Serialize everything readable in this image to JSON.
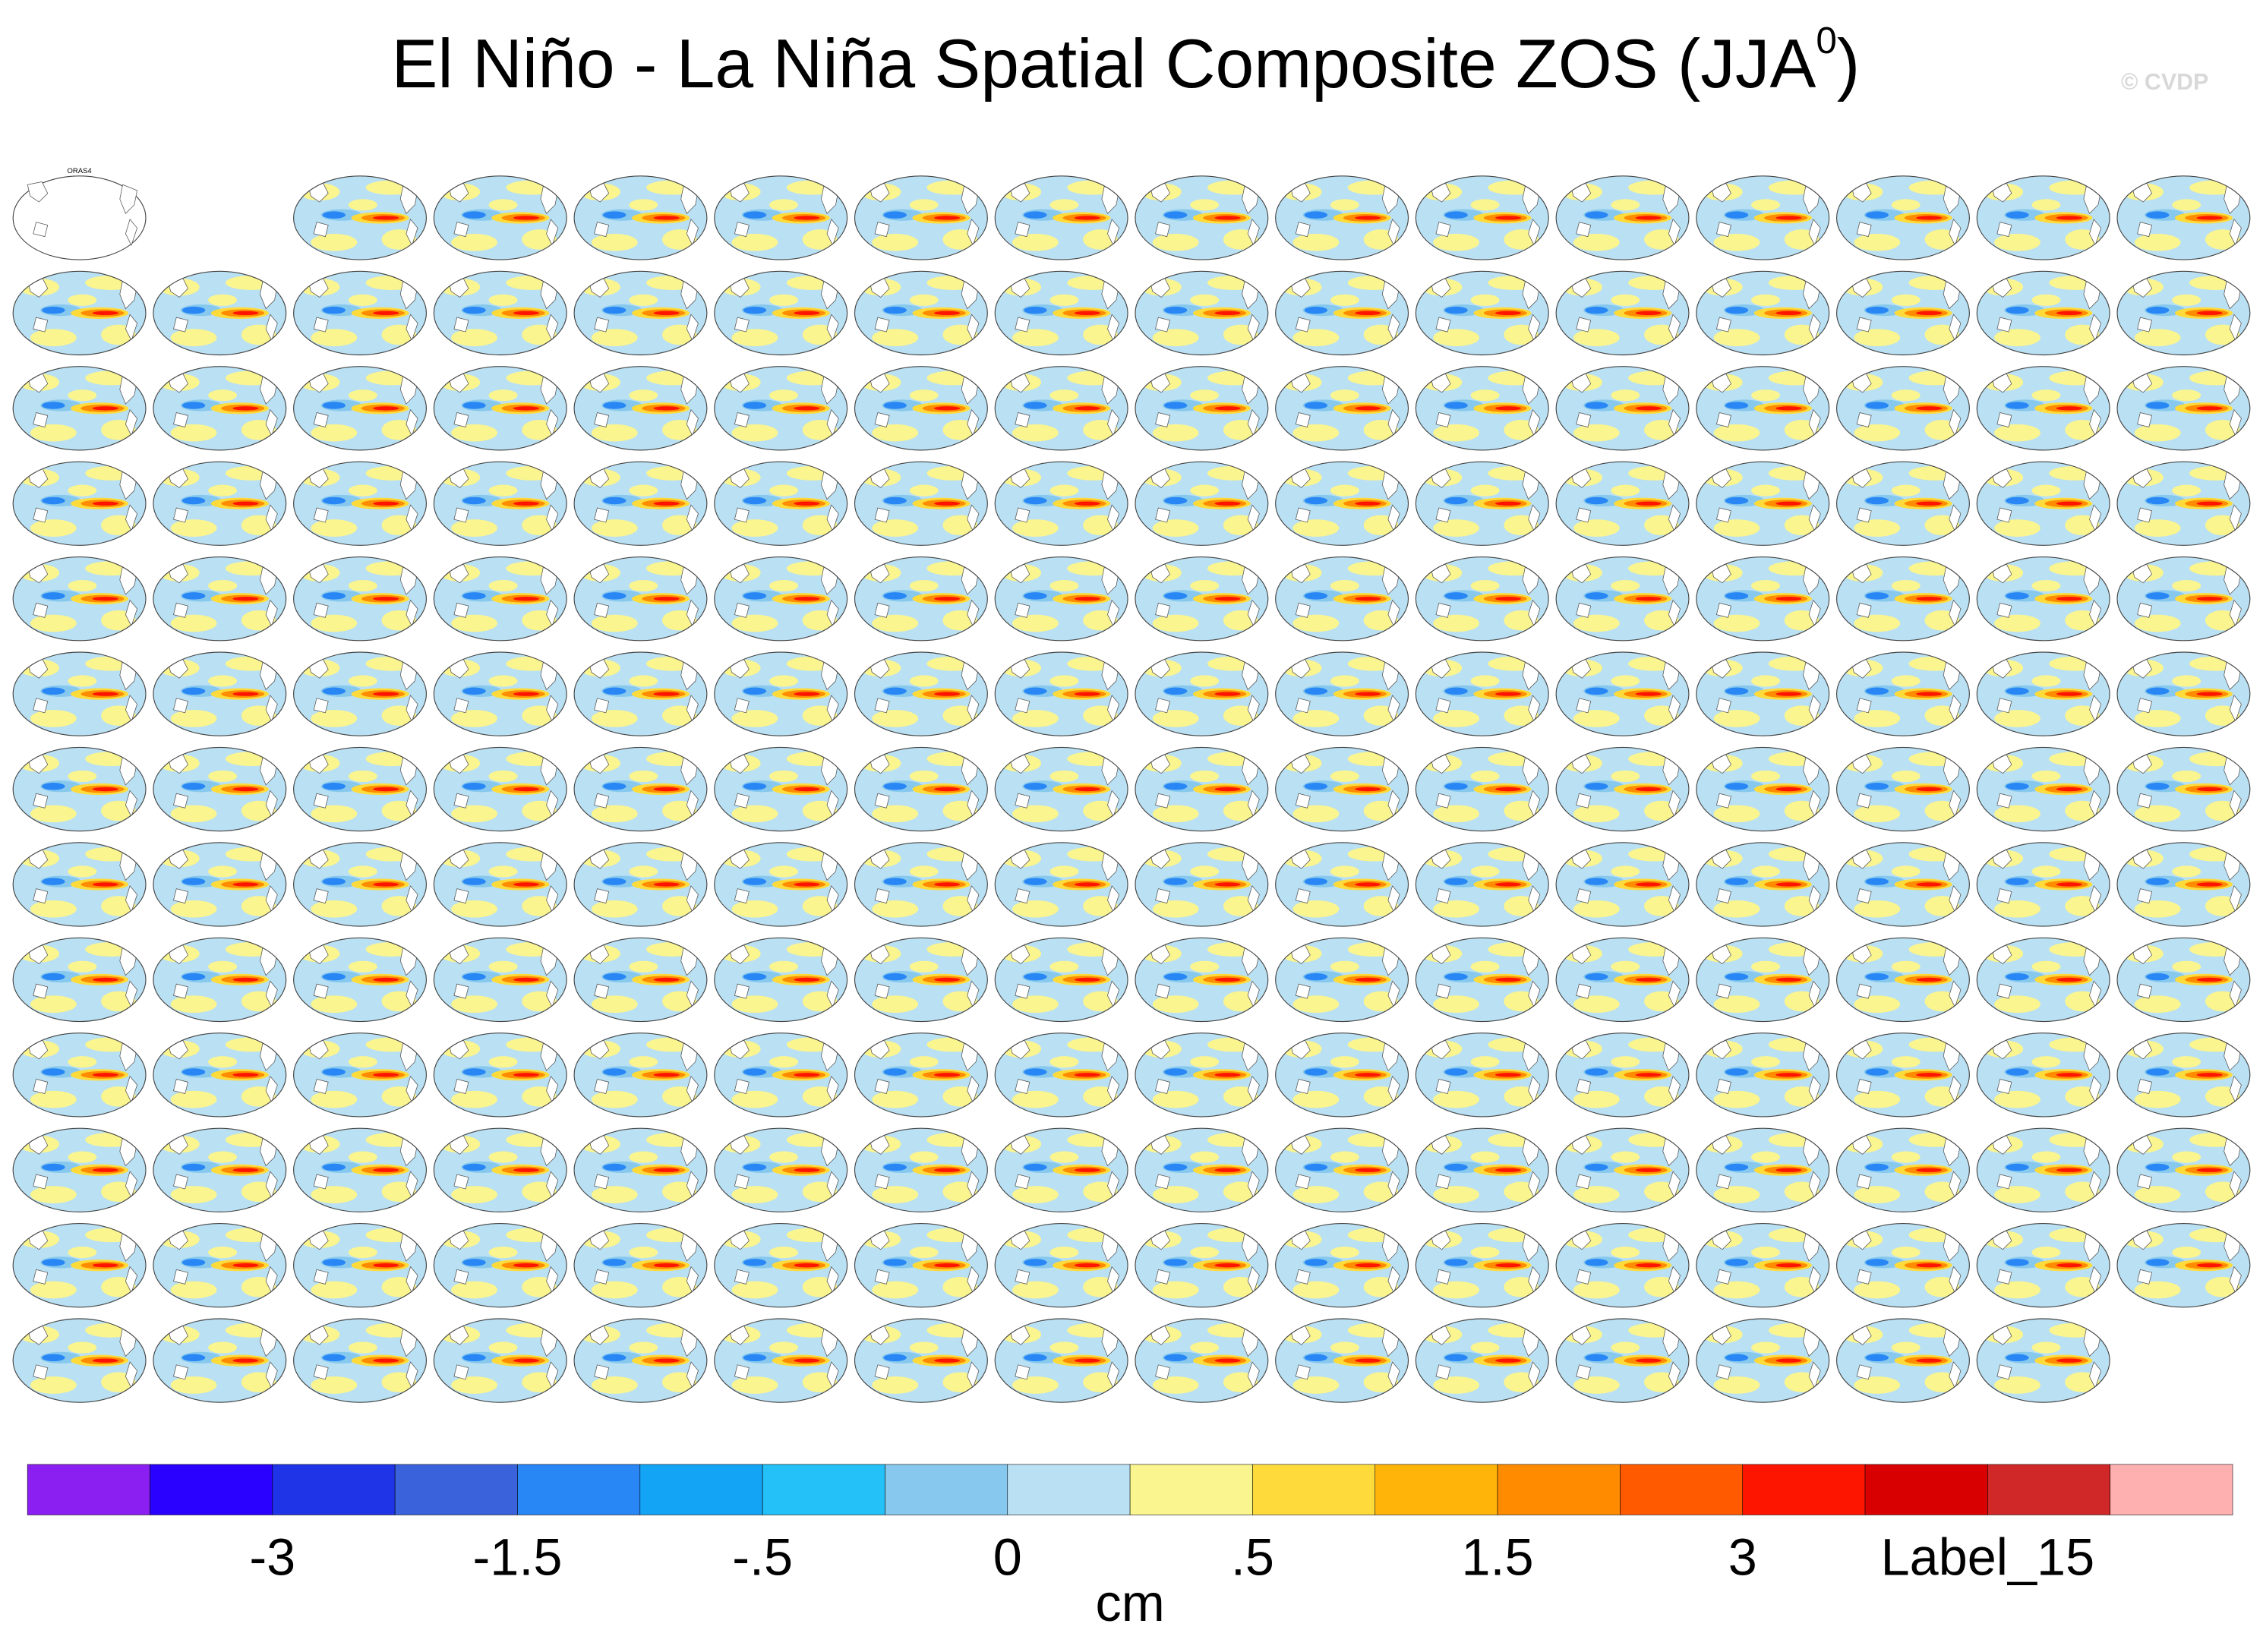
{
  "title": "El Niño - La Niña Spatial Composite ZOS (JJA",
  "title_superscript": "0",
  "title_end": ")",
  "watermark": "© CVDP",
  "obs_label": "ORAS4",
  "colorbar": {
    "colors": [
      "#8b1ef0",
      "#2a00ff",
      "#1e34e6",
      "#3a62db",
      "#2886f5",
      "#14a4f5",
      "#24c0f8",
      "#86c8ee",
      "#b9e0f3",
      "#fbf58f",
      "#fedb3b",
      "#ffb40a",
      "#ff8c00",
      "#ff5a00",
      "#fe1500",
      "#d80000",
      "#d02828",
      "#feafaf"
    ],
    "labels": [
      "-3",
      "-1.5",
      "-.5",
      "0",
      ".5",
      "1.5",
      "3",
      "Label_15"
    ],
    "units": "cm"
  }
}
